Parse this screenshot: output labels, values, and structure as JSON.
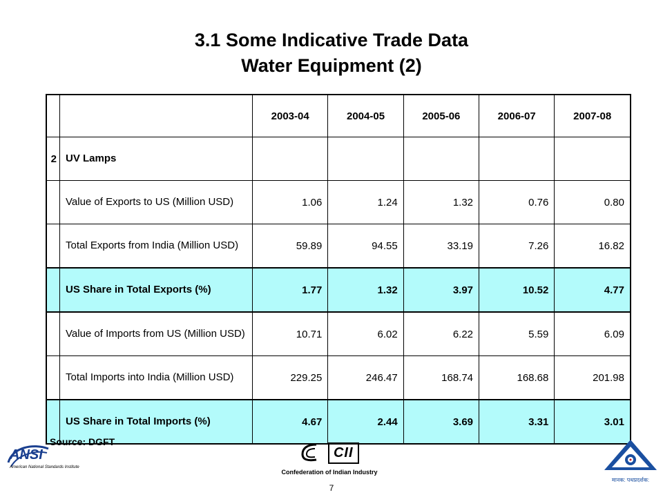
{
  "title": {
    "line1": "3.1 Some Indicative Trade Data",
    "line2": "Water Equipment (2)"
  },
  "table": {
    "years": [
      "2003-04",
      "2004-05",
      "2005-06",
      "2006-07",
      "2007-08"
    ],
    "section": {
      "index": "2",
      "label": "UV Lamps"
    },
    "rows": [
      {
        "label": "Value of Exports to US (Million USD)",
        "values": [
          "1.06",
          "1.24",
          "1.32",
          "0.76",
          "0.80"
        ],
        "highlight": false
      },
      {
        "label": "Total Exports from India (Million USD)",
        "values": [
          "59.89",
          "94.55",
          "33.19",
          "7.26",
          "16.82"
        ],
        "highlight": false
      },
      {
        "label": "US Share in Total Exports (%)",
        "values": [
          "1.77",
          "1.32",
          "3.97",
          "10.52",
          "4.77"
        ],
        "highlight": true
      },
      {
        "label": "Value of Imports from US (Million USD)",
        "values": [
          "10.71",
          "6.02",
          "6.22",
          "5.59",
          "6.09"
        ],
        "highlight": false
      },
      {
        "label": "Total Imports into India (Million USD)",
        "values": [
          "229.25",
          "246.47",
          "168.74",
          "168.68",
          "201.98"
        ],
        "highlight": false
      },
      {
        "label": "US Share in Total Imports (%)",
        "values": [
          "4.67",
          "2.44",
          "3.69",
          "3.31",
          "3.01"
        ],
        "highlight": true
      }
    ]
  },
  "source": "Source: DGFT",
  "logos": {
    "ansi": {
      "mark": "ANSI",
      "caption": "American National Standards Institute"
    },
    "cii": {
      "mark": "CII",
      "caption": "Confederation of Indian Industry"
    },
    "bis": {
      "caption": "मानक: पथप्रदर्शक:"
    }
  },
  "page_number": "7",
  "colors": {
    "highlight": "#b3fbfb",
    "bis_blue": "#1a4fa0",
    "ansi_blue": "#1a3f8f"
  }
}
